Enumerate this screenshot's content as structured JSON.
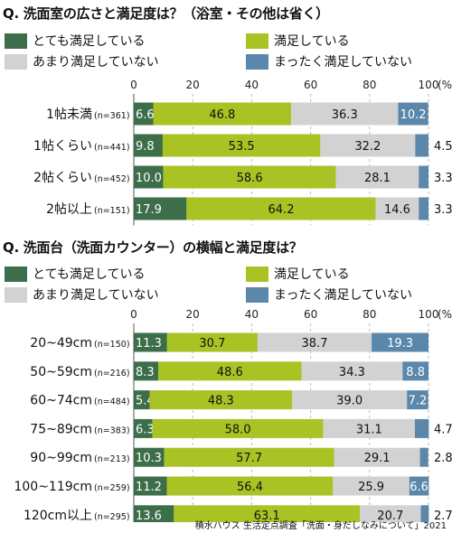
{
  "colors": {
    "very_satisfied": "#3d6e4a",
    "satisfied": "#a9c224",
    "not_very": "#d2d2d2",
    "not_at_all": "#5b87ab"
  },
  "legend": [
    "とても満足している",
    "満足している",
    "あまり満足していない",
    "まったく満足していない"
  ],
  "axis_unit": "(%)",
  "footer": "積水ハウス 生活定点調査「洗面・身だしなみについて」2021",
  "chart_data": [
    {
      "type": "bar",
      "stacked": true,
      "orientation": "horizontal",
      "title": "Q. 洗面室の広さと満足度は？（浴室・その他は省く）",
      "xlim": [
        0,
        100
      ],
      "xticks": [
        "0",
        "20",
        "40",
        "60",
        "80",
        "100"
      ],
      "categories": [
        "1帖未満",
        "1帖くらい",
        "2帖くらい",
        "2帖以上"
      ],
      "n_labels": [
        "(n=361)",
        "(n=441)",
        "(n=452)",
        "(n=151)"
      ],
      "series": [
        {
          "name": "とても満足している",
          "values": [
            6.6,
            9.8,
            10.0,
            17.9
          ]
        },
        {
          "name": "満足している",
          "values": [
            46.8,
            53.5,
            58.6,
            64.2
          ]
        },
        {
          "name": "あまり満足していない",
          "values": [
            36.3,
            32.2,
            28.1,
            14.6
          ]
        },
        {
          "name": "まったく満足していない",
          "values": [
            10.2,
            4.5,
            3.3,
            3.3
          ]
        }
      ]
    },
    {
      "type": "bar",
      "stacked": true,
      "orientation": "horizontal",
      "title": "Q. 洗面台（洗面カウンター）の横幅と満足度は？",
      "xlim": [
        0,
        100
      ],
      "xticks": [
        "0",
        "20",
        "40",
        "60",
        "80",
        "100"
      ],
      "categories": [
        "20~49cm",
        "50~59cm",
        "60~74cm",
        "75~89cm",
        "90~99cm",
        "100~119cm",
        "120cm以上"
      ],
      "n_labels": [
        "(n=150)",
        "(n=216)",
        "(n=484)",
        "(n=383)",
        "(n=213)",
        "(n=259)",
        "(n=295)"
      ],
      "series": [
        {
          "name": "とても満足している",
          "values": [
            11.3,
            8.3,
            5.4,
            6.3,
            10.3,
            11.2,
            13.6
          ]
        },
        {
          "name": "満足している",
          "values": [
            30.7,
            48.6,
            48.3,
            58.0,
            57.7,
            56.4,
            63.1
          ]
        },
        {
          "name": "あまり満足していない",
          "values": [
            38.7,
            34.3,
            39.0,
            31.1,
            29.1,
            25.9,
            20.7
          ]
        },
        {
          "name": "まったく満足していない",
          "values": [
            19.3,
            8.8,
            7.2,
            4.7,
            2.8,
            6.6,
            2.7
          ]
        }
      ]
    }
  ]
}
